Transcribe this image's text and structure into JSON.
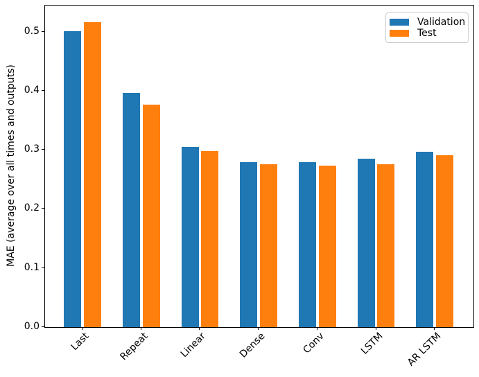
{
  "chart_data": {
    "type": "bar",
    "title": "",
    "xlabel": "",
    "ylabel": "MAE (average over all times and outputs)",
    "categories": [
      "Last",
      "Repeat",
      "Linear",
      "Dense",
      "Conv",
      "LSTM",
      "AR LSTM"
    ],
    "series": [
      {
        "name": "Validation",
        "color": "#1f77b4",
        "values": [
          0.501,
          0.396,
          0.305,
          0.279,
          0.279,
          0.285,
          0.297
        ]
      },
      {
        "name": "Test",
        "color": "#ff7f0e",
        "values": [
          0.516,
          0.376,
          0.298,
          0.276,
          0.273,
          0.276,
          0.291
        ]
      }
    ],
    "ylim": [
      0,
      0.544
    ],
    "yticks": [
      "0.0",
      "0.1",
      "0.2",
      "0.3",
      "0.4",
      "0.5"
    ],
    "bar_width": 0.3,
    "bar_offset": 0.17,
    "xtick_rotation": 45,
    "legend_position": "upper right",
    "grid": false,
    "colors": {
      "axis": "#000000",
      "text": "#000000",
      "legend_border": "#cccccc",
      "background": "#ffffff"
    }
  }
}
